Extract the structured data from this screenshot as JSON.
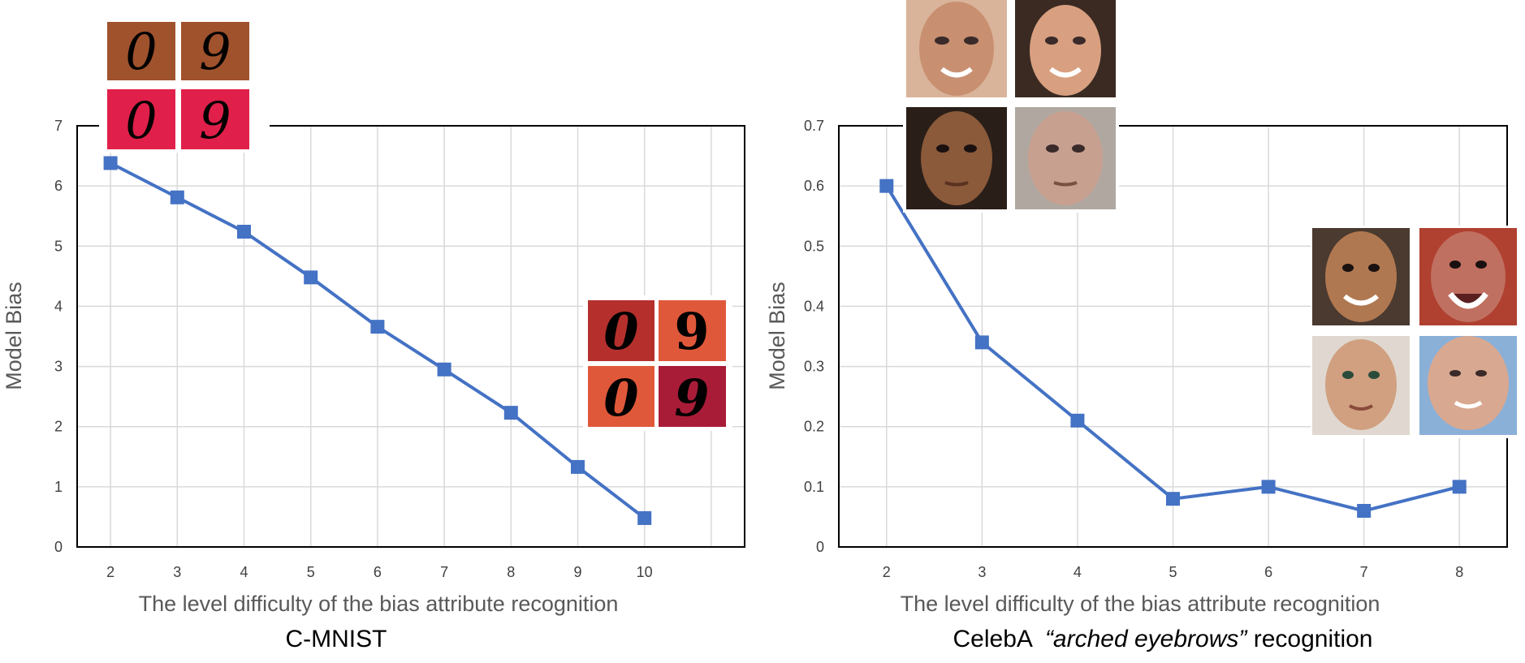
{
  "chart_data": [
    {
      "type": "line",
      "title": "C-MNIST",
      "xlabel": "The level difficulty of the bias attribute recognition",
      "ylabel": "Model Bias",
      "x": [
        2,
        3,
        4,
        5,
        6,
        7,
        8,
        9,
        10
      ],
      "values": [
        6.38,
        5.81,
        5.24,
        4.48,
        3.66,
        2.95,
        2.23,
        1.33,
        0.48
      ],
      "ylim": [
        0,
        7
      ],
      "yticks": [
        "0",
        "1",
        "2",
        "3",
        "4",
        "5",
        "6",
        "7"
      ],
      "xticks": [
        "2",
        "3",
        "4",
        "5",
        "6",
        "7",
        "8",
        "9",
        "10"
      ],
      "grid": true,
      "line_color": "#4472c4",
      "thumbnails": {
        "easy_bias_examples": [
          "0",
          "9",
          "0",
          "9"
        ],
        "hard_bias_examples": [
          "0",
          "9",
          "0",
          "9"
        ]
      }
    },
    {
      "type": "line",
      "title_parts": [
        "CelebA  ",
        "“arched eyebrows”",
        " recognition"
      ],
      "xlabel": "The level difficulty of the bias attribute recognition",
      "ylabel": "Model Bias",
      "x": [
        2,
        3,
        4,
        5,
        6,
        7,
        8
      ],
      "values": [
        0.6,
        0.34,
        0.21,
        0.08,
        0.1,
        0.06,
        0.1
      ],
      "ylim": [
        0,
        0.7
      ],
      "yticks": [
        "0",
        "0.1",
        "0.2",
        "0.3",
        "0.4",
        "0.5",
        "0.6",
        "0.7"
      ],
      "xticks": [
        "2",
        "3",
        "4",
        "5",
        "6",
        "7",
        "8"
      ],
      "grid": true,
      "line_color": "#4472c4"
    }
  ],
  "colors": {
    "series": "#4472c4",
    "grid": "#d9d9d9",
    "axis": "#000000",
    "mnist_easy": [
      "#a0522d",
      "#a0522d",
      "#e0204a",
      "#e0204a"
    ],
    "mnist_hard": [
      "#b5302d",
      "#e0583a",
      "#e0583a",
      "#a81c38"
    ],
    "faces_top": [
      "#c89070",
      "#d8a080",
      "#8a5a3a",
      "#c8a090"
    ],
    "faces_right": [
      "#b07850",
      "#c07060",
      "#d0a080",
      "#d8a890"
    ]
  }
}
